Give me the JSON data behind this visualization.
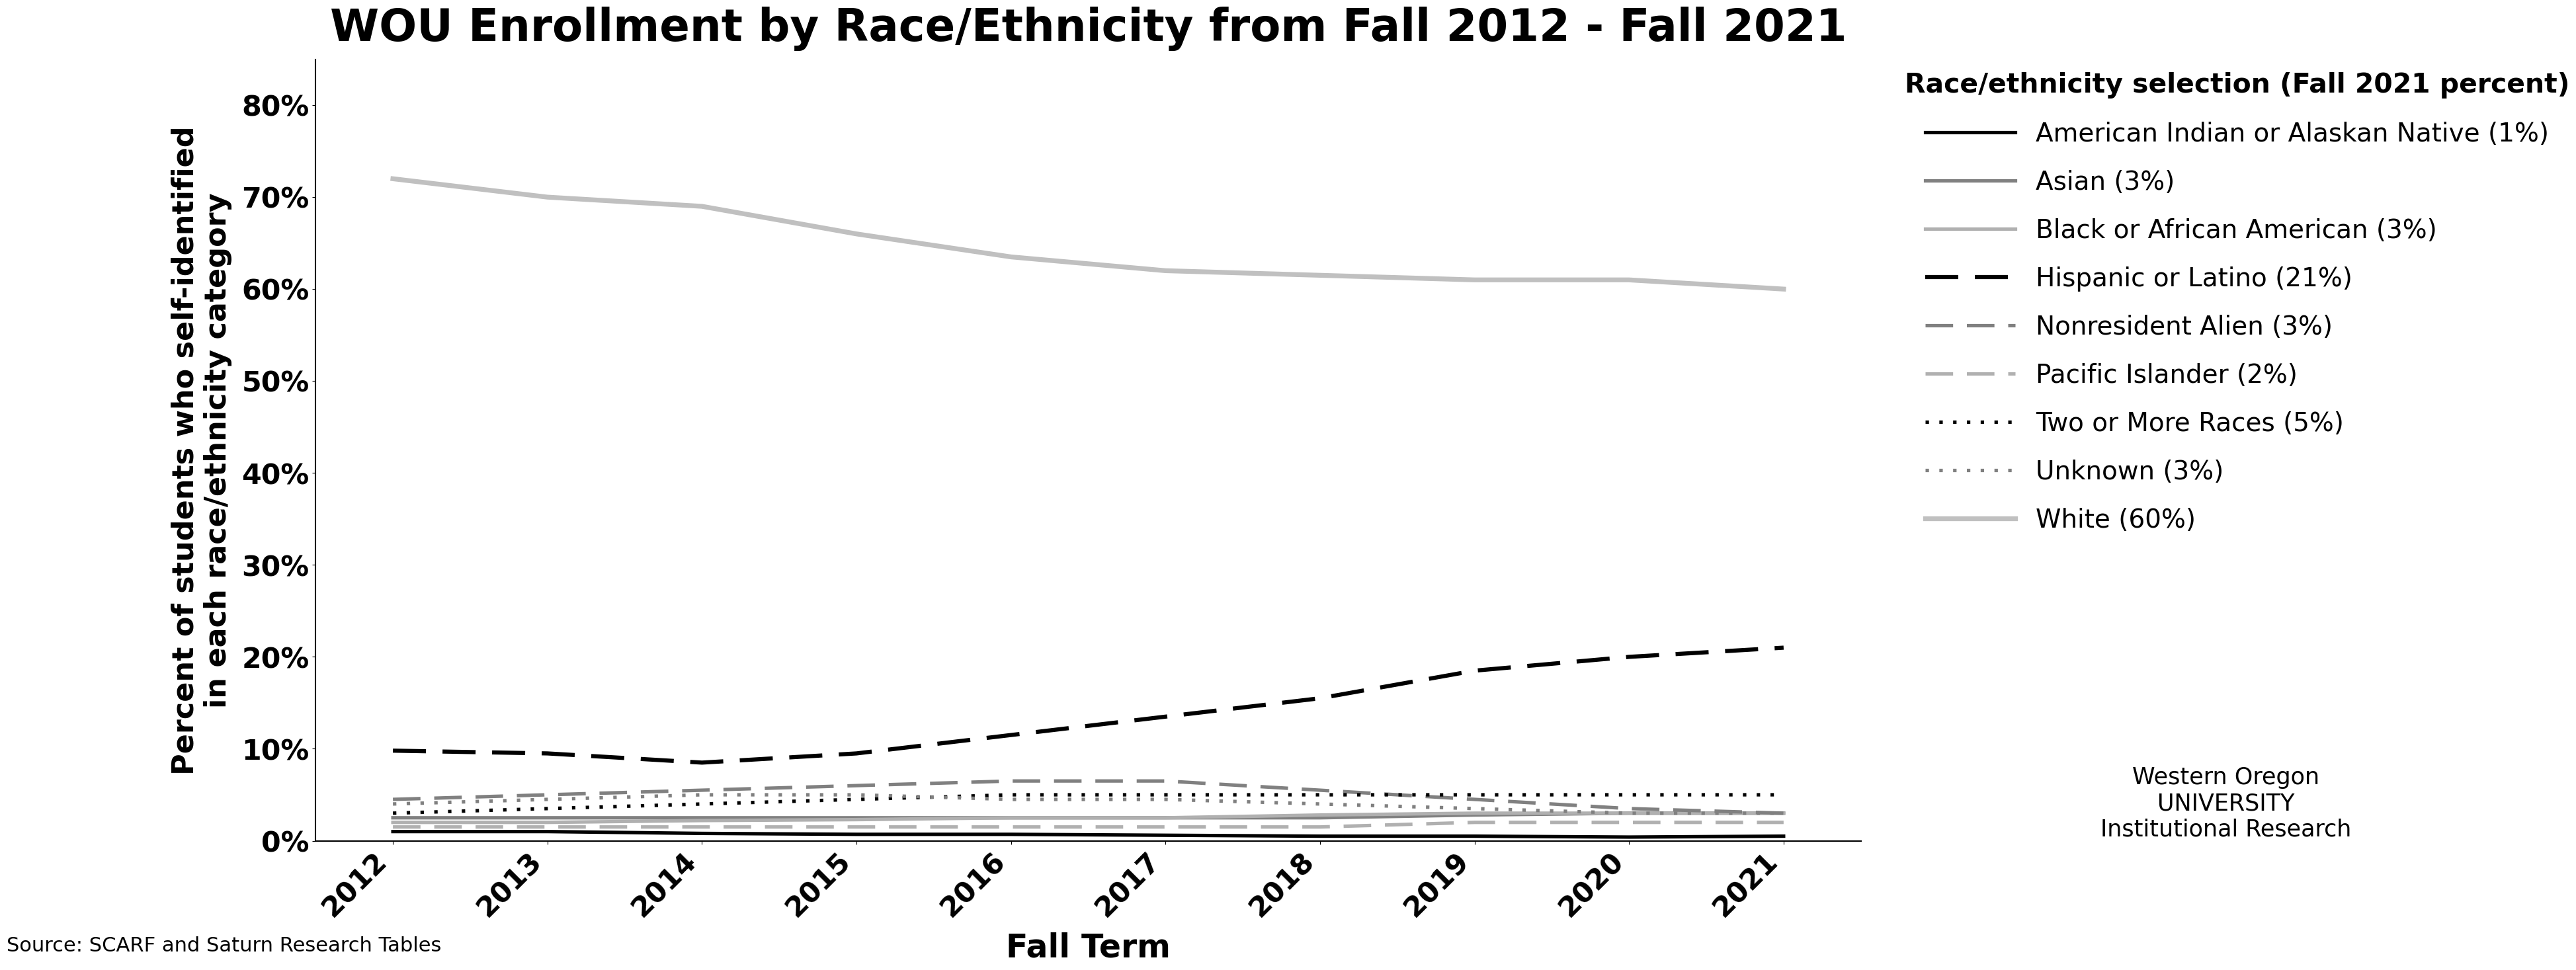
{
  "title": "WOU Enrollment by Race/Ethnicity from Fall 2012 - Fall 2021",
  "xlabel": "Fall Term",
  "ylabel": "Percent of students who self-identified\nin each race/ethnicity category",
  "source": "Source: SCARF and Saturn Research Tables",
  "legend_title": "Race/ethnicity selection (Fall 2021 percent)",
  "years": [
    2012,
    2013,
    2014,
    2015,
    2016,
    2017,
    2018,
    2019,
    2020,
    2021
  ],
  "series": [
    {
      "label": "American Indian or Alaskan Native (1%)",
      "color": "#000000",
      "linestyle": "solid",
      "linewidth": 2.5,
      "data": [
        1.0,
        1.0,
        0.8,
        0.7,
        0.7,
        0.6,
        0.5,
        0.5,
        0.4,
        0.5
      ]
    },
    {
      "label": "Asian (3%)",
      "color": "#808080",
      "linestyle": "solid",
      "linewidth": 2.5,
      "data": [
        2.5,
        2.5,
        2.5,
        2.5,
        2.5,
        2.5,
        2.5,
        2.8,
        3.0,
        3.0
      ]
    },
    {
      "label": "Black or African American (3%)",
      "color": "#b0b0b0",
      "linestyle": "solid",
      "linewidth": 2.5,
      "data": [
        2.0,
        2.0,
        2.2,
        2.3,
        2.5,
        2.5,
        2.8,
        3.0,
        3.0,
        3.0
      ]
    },
    {
      "label": "Hispanic or Latino (21%)",
      "color": "#000000",
      "linestyle": "dashed",
      "linewidth": 3.0,
      "data": [
        9.8,
        9.5,
        8.5,
        9.5,
        11.5,
        13.5,
        15.5,
        18.5,
        20.0,
        21.0
      ]
    },
    {
      "label": "Nonresident Alien (3%)",
      "color": "#808080",
      "linestyle": "dashed",
      "linewidth": 2.5,
      "data": [
        4.5,
        5.0,
        5.5,
        6.0,
        6.5,
        6.5,
        5.5,
        4.5,
        3.5,
        3.0
      ]
    },
    {
      "label": "Pacific Islander (2%)",
      "color": "#b0b0b0",
      "linestyle": "dashed",
      "linewidth": 2.5,
      "data": [
        1.5,
        1.5,
        1.5,
        1.5,
        1.5,
        1.5,
        1.5,
        2.0,
        2.0,
        2.0
      ]
    },
    {
      "label": "Two or More Races (5%)",
      "color": "#000000",
      "linestyle": "dotted",
      "linewidth": 2.5,
      "data": [
        3.0,
        3.5,
        4.0,
        4.5,
        5.0,
        5.0,
        5.0,
        5.0,
        5.0,
        5.0
      ]
    },
    {
      "label": "Unknown (3%)",
      "color": "#808080",
      "linestyle": "dotted",
      "linewidth": 2.5,
      "data": [
        4.0,
        4.5,
        5.0,
        5.0,
        4.5,
        4.5,
        4.0,
        3.5,
        3.0,
        3.0
      ]
    },
    {
      "label": "White (60%)",
      "color": "#c0c0c0",
      "linestyle": "solid",
      "linewidth": 3.5,
      "data": [
        72.0,
        70.0,
        69.0,
        66.0,
        63.5,
        62.0,
        61.5,
        61.0,
        61.0,
        60.0
      ]
    }
  ],
  "ylim": [
    0,
    85
  ],
  "yticks": [
    0,
    10,
    20,
    30,
    40,
    50,
    60,
    70,
    80
  ],
  "ytick_labels": [
    "0%",
    "10%",
    "20%",
    "30%",
    "40%",
    "50%",
    "60%",
    "70%",
    "80%"
  ],
  "background_color": "#ffffff",
  "title_fontsize": 22,
  "axis_label_fontsize": 16,
  "tick_fontsize": 14,
  "legend_fontsize": 14,
  "source_fontsize": 11
}
